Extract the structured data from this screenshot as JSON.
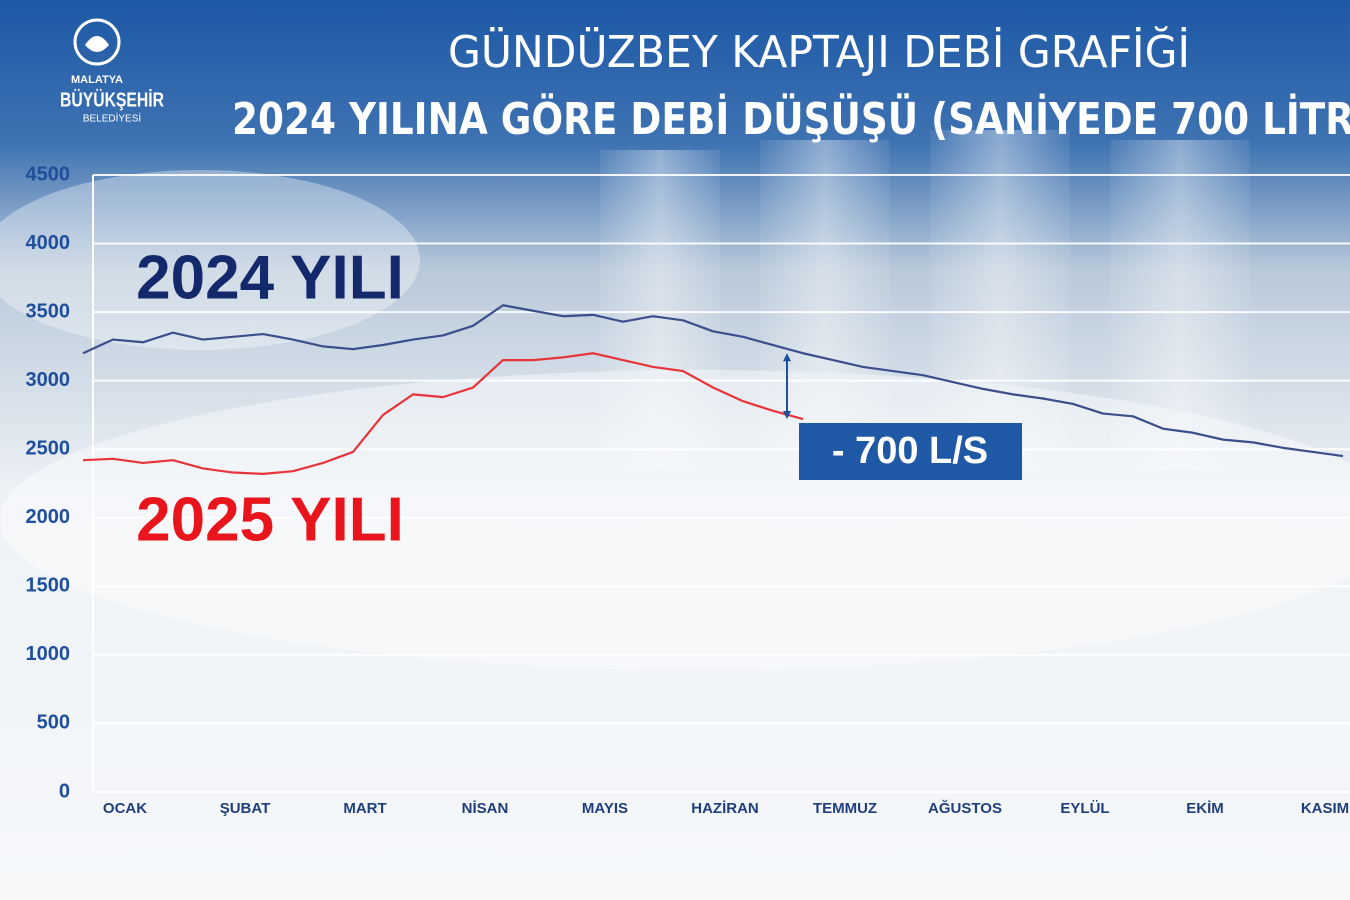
{
  "logo": {
    "line1": "MALATYA",
    "line2": "BÜYÜKŞEHİR",
    "line3": "BELEDİYESİ"
  },
  "chart_data": {
    "type": "line",
    "title": "GÜNDÜZBEY KAPTAJI DEBİ GRAFİĞİ",
    "subtitle": "2024 YILINA GÖRE DEBİ DÜŞÜŞÜ (SANİYEDE 700 LİTR",
    "annotation": "- 700 L/S",
    "categories": [
      null,
      "OCAK",
      null,
      null,
      null,
      "ŞUBAT",
      null,
      null,
      null,
      "MART",
      null,
      null,
      null,
      "NİSAN",
      null,
      null,
      null,
      "MAYIS",
      null,
      null,
      null,
      "HAZİRAN",
      null,
      null,
      null,
      "TEMMUZ",
      null,
      null,
      null,
      "AĞUSTOS",
      null,
      null,
      null,
      "EYLÜL",
      null,
      null,
      null,
      "EKİM",
      null,
      null,
      null,
      "KASIM",
      null
    ],
    "series": [
      {
        "name": "2024 YILI",
        "color": "#3b4f8a",
        "label_color": "#14296b",
        "values": [
          3200,
          3300,
          3280,
          3350,
          3300,
          3320,
          3340,
          3300,
          3250,
          3230,
          3260,
          3300,
          3330,
          3400,
          3550,
          3510,
          3470,
          3480,
          3430,
          3470,
          3440,
          3360,
          3320,
          3260,
          3200,
          3150,
          3100,
          3070,
          3040,
          2990,
          2940,
          2900,
          2870,
          2830,
          2760,
          2740,
          2650,
          2620,
          2570,
          2550,
          2510,
          2480,
          2450
        ]
      },
      {
        "name": "2025 YILI",
        "color": "#e8353a",
        "label_color": "#e8161c",
        "values": [
          2420,
          2430,
          2400,
          2420,
          2360,
          2330,
          2320,
          2340,
          2400,
          2480,
          2750,
          2900,
          2880,
          2950,
          3150,
          3150,
          3170,
          3200,
          3150,
          3100,
          3070,
          2950,
          2850,
          2780,
          2720,
          null,
          null,
          null,
          null,
          null,
          null,
          null,
          null,
          null,
          null,
          null,
          null,
          null,
          null,
          null,
          null,
          null,
          null
        ]
      }
    ],
    "ylim": [
      0,
      4500
    ],
    "yticks": [
      0,
      500,
      1000,
      1500,
      2000,
      2500,
      3000,
      3500,
      4000,
      4500
    ],
    "grid": true
  }
}
